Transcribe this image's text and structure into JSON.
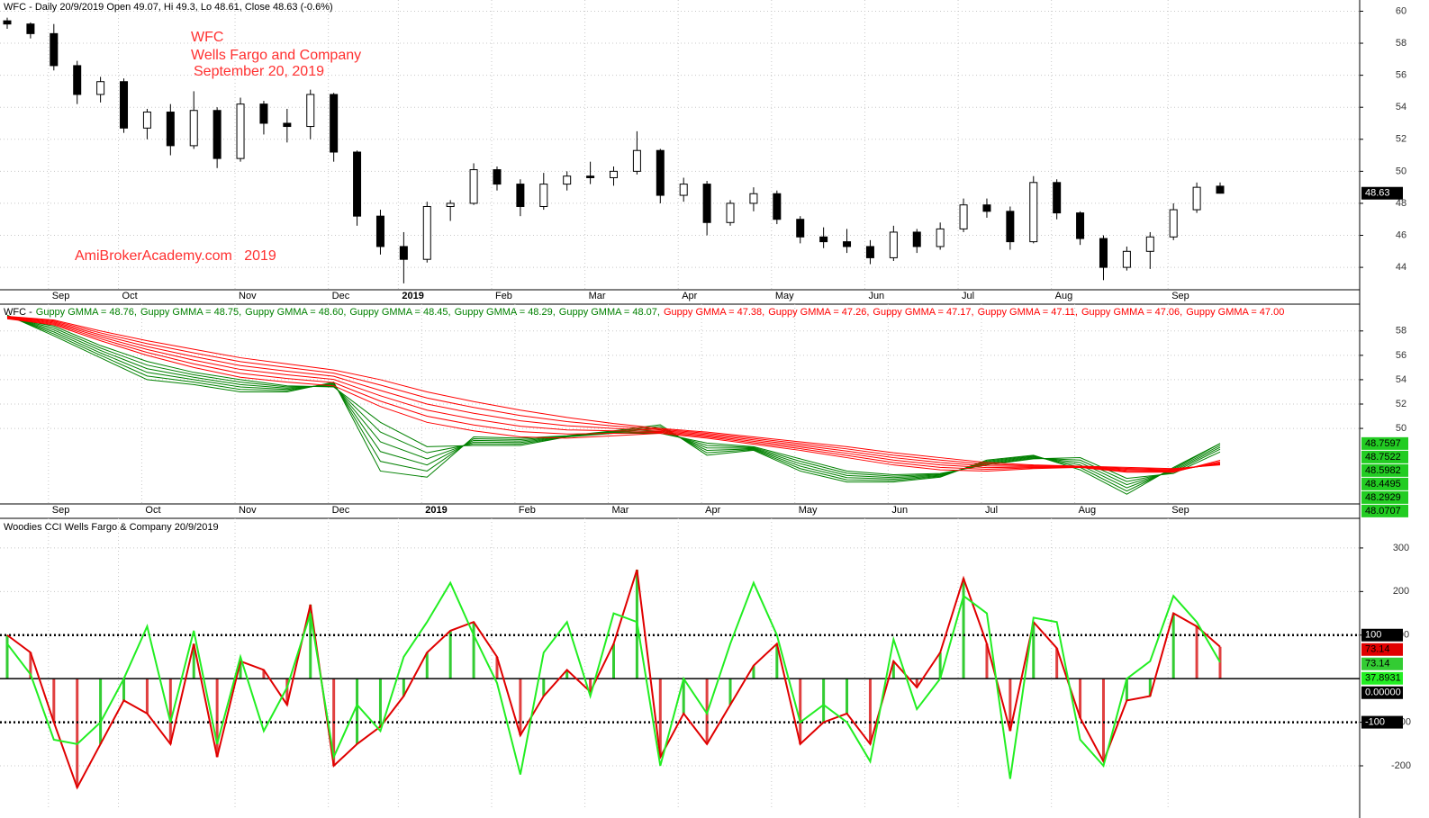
{
  "chart_data": [
    {
      "type": "candlestick",
      "title": "WFC - Daily 20/9/2019 Open 49.07, Hi 49.3, Lo 48.61, Close 48.63 (-0.6%)",
      "annotations": [
        "WFC",
        "Wells Fargo and Company",
        "September 20, 2019",
        "AmiBrokerAcademy.com   2019"
      ],
      "categories": [
        null,
        null,
        "Sep",
        null,
        null,
        "Oct",
        null,
        null,
        null,
        null,
        "Nov",
        null,
        null,
        null,
        "Dec",
        null,
        null,
        "2019",
        null,
        null,
        null,
        "Feb",
        null,
        null,
        null,
        "Mar",
        null,
        null,
        null,
        "Apr",
        null,
        null,
        null,
        "May",
        null,
        null,
        null,
        "Jun",
        null,
        null,
        null,
        "Jul",
        null,
        null,
        null,
        "Aug",
        null,
        null,
        null,
        null,
        "Sep",
        null,
        null
      ],
      "open": [
        59.4,
        59.2,
        58.6,
        56.6,
        54.8,
        55.6,
        52.7,
        53.7,
        51.6,
        53.8,
        50.8,
        54.2,
        53.0,
        52.8,
        54.8,
        51.2,
        47.2,
        45.3,
        44.5,
        47.8,
        48.0,
        50.1,
        49.2,
        47.8,
        49.2,
        49.7,
        49.6,
        50.0,
        51.3,
        48.5,
        49.2,
        46.8,
        48.0,
        48.6,
        47.0,
        45.9,
        45.6,
        45.3,
        44.6,
        46.2,
        45.3,
        46.4,
        47.9,
        47.5,
        45.6,
        49.3,
        47.4,
        45.8,
        44.0,
        45.0,
        45.9,
        47.6,
        49.07
      ],
      "high": [
        59.6,
        59.3,
        59.2,
        56.9,
        55.9,
        55.8,
        53.9,
        54.2,
        55.0,
        54.0,
        54.6,
        54.4,
        53.9,
        55.1,
        54.9,
        51.3,
        47.6,
        46.2,
        48.1,
        48.2,
        50.5,
        50.3,
        49.5,
        49.9,
        50.0,
        50.6,
        50.3,
        52.5,
        51.4,
        49.6,
        49.4,
        48.2,
        49.0,
        48.8,
        47.2,
        46.5,
        46.4,
        45.7,
        46.6,
        46.4,
        46.8,
        48.3,
        48.3,
        47.8,
        49.7,
        49.5,
        47.5,
        46.0,
        45.3,
        46.2,
        48.0,
        49.3,
        49.3
      ],
      "low": [
        58.9,
        58.3,
        56.3,
        54.2,
        54.3,
        52.4,
        52.0,
        51.0,
        51.4,
        50.2,
        50.6,
        52.3,
        51.8,
        52.0,
        50.6,
        46.6,
        44.8,
        43.0,
        44.3,
        46.9,
        47.9,
        48.8,
        47.2,
        47.6,
        48.8,
        49.2,
        49.1,
        49.8,
        48.0,
        48.1,
        46.0,
        46.6,
        47.5,
        46.7,
        45.5,
        45.2,
        44.9,
        44.2,
        44.4,
        44.9,
        45.1,
        46.2,
        47.1,
        45.1,
        45.5,
        47.0,
        45.4,
        43.2,
        43.8,
        43.9,
        45.7,
        47.4,
        48.61
      ],
      "close": [
        59.2,
        58.6,
        56.6,
        54.8,
        55.6,
        52.7,
        53.7,
        51.6,
        53.8,
        50.8,
        54.2,
        53.0,
        52.8,
        54.8,
        51.2,
        47.2,
        45.3,
        44.5,
        47.8,
        48.0,
        50.1,
        49.2,
        47.8,
        49.2,
        49.7,
        49.6,
        50.0,
        51.3,
        48.5,
        49.2,
        46.8,
        48.0,
        48.6,
        47.0,
        45.9,
        45.6,
        45.3,
        44.6,
        46.2,
        45.3,
        46.4,
        47.9,
        47.5,
        45.6,
        49.3,
        47.4,
        45.8,
        44.0,
        45.0,
        45.9,
        47.6,
        49.0,
        48.63
      ],
      "up_color": "#ffffff",
      "down_color": "#000000",
      "ylim": [
        42.6,
        60.7
      ],
      "yticks": [
        44,
        46,
        48,
        50,
        52,
        54,
        56,
        58,
        60
      ],
      "grid": true
    },
    {
      "type": "line",
      "title": "WFC -",
      "categories": [
        null,
        "Sep",
        null,
        "Oct",
        null,
        "Nov",
        null,
        "Dec",
        null,
        "2019",
        null,
        "Feb",
        null,
        "Mar",
        null,
        "Apr",
        null,
        "May",
        null,
        "Jun",
        null,
        "Jul",
        null,
        "Aug",
        null,
        "Sep",
        null
      ],
      "series": [
        {
          "name": "Guppy GMMA = 48.76,",
          "color": "#008000",
          "value_box": true,
          "values": [
            59.3,
            57.6,
            55.8,
            54.0,
            53.6,
            53.0,
            53.0,
            53.8,
            46.5,
            46.0,
            49.3,
            49.2,
            49.4,
            49.8,
            50.3,
            47.8,
            48.2,
            46.5,
            45.6,
            45.6,
            46.0,
            47.4,
            47.8,
            46.6,
            44.6,
            46.8,
            48.7597
          ]
        },
        {
          "name": "Guppy GMMA = 48.75,",
          "color": "#008000",
          "value_box": true,
          "values": [
            59.26,
            57.76,
            56.0,
            54.3,
            53.8,
            53.2,
            53.1,
            53.72,
            47.3,
            46.5,
            49.16,
            49.08,
            49.38,
            49.76,
            50.16,
            48.0,
            48.26,
            46.7,
            45.78,
            45.72,
            46.06,
            47.32,
            47.74,
            46.8,
            44.86,
            46.7,
            48.7522
          ]
        },
        {
          "name": "Guppy GMMA = 48.60,",
          "color": "#008000",
          "value_box": true,
          "values": [
            59.22,
            57.92,
            56.2,
            54.6,
            54.0,
            53.4,
            53.2,
            53.64,
            48.1,
            47.0,
            49.02,
            48.96,
            49.36,
            49.72,
            50.02,
            48.2,
            48.32,
            46.9,
            45.96,
            45.84,
            46.12,
            47.24,
            47.68,
            47.0,
            45.12,
            46.6,
            48.5982
          ]
        },
        {
          "name": "Guppy GMMA = 48.45,",
          "color": "#008000",
          "value_box": true,
          "values": [
            59.18,
            58.08,
            56.4,
            54.9,
            54.2,
            53.6,
            53.3,
            53.56,
            48.9,
            47.5,
            48.88,
            48.84,
            49.34,
            49.68,
            49.88,
            48.4,
            48.38,
            47.1,
            46.14,
            45.96,
            46.18,
            47.16,
            47.62,
            47.2,
            45.38,
            46.5,
            48.4495
          ]
        },
        {
          "name": "Guppy GMMA = 48.29,",
          "color": "#008000",
          "value_box": true,
          "values": [
            59.14,
            58.24,
            56.6,
            55.2,
            54.4,
            53.8,
            53.4,
            53.48,
            49.7,
            48.0,
            48.74,
            48.72,
            49.32,
            49.64,
            49.74,
            48.6,
            48.44,
            47.3,
            46.32,
            46.08,
            46.24,
            47.08,
            47.56,
            47.4,
            45.64,
            46.4,
            48.2929
          ]
        },
        {
          "name": "Guppy GMMA = 48.07,",
          "color": "#008000",
          "value_box": true,
          "values": [
            59.1,
            58.4,
            56.8,
            55.5,
            54.6,
            54.0,
            53.5,
            53.4,
            50.5,
            48.5,
            48.6,
            48.6,
            49.3,
            49.6,
            49.6,
            48.8,
            48.5,
            47.5,
            46.5,
            46.2,
            46.3,
            47.0,
            47.5,
            47.6,
            45.9,
            46.3,
            48.0707
          ]
        },
        {
          "name": "Guppy GMMA = 47.38,",
          "color": "#ff0000",
          "values": [
            59.0,
            58.5,
            57.2,
            56.0,
            55.0,
            54.2,
            53.8,
            53.5,
            51.8,
            50.5,
            49.8,
            49.3,
            49.2,
            49.4,
            49.6,
            49.2,
            48.7,
            48.2,
            47.6,
            47.0,
            46.6,
            46.5,
            46.7,
            46.8,
            46.4,
            46.4,
            47.38
          ]
        },
        {
          "name": "Guppy GMMA = 47.26,",
          "color": "#ff0000",
          "values": [
            59.04,
            58.58,
            57.36,
            56.24,
            55.3,
            54.52,
            54.1,
            53.76,
            52.24,
            51.0,
            50.28,
            49.74,
            49.54,
            49.6,
            49.68,
            49.3,
            48.82,
            48.34,
            47.78,
            47.2,
            46.8,
            46.64,
            46.76,
            46.82,
            46.48,
            46.46,
            47.26
          ]
        },
        {
          "name": "Guppy GMMA = 47.17,",
          "color": "#ff0000",
          "values": [
            59.08,
            58.66,
            57.52,
            56.48,
            55.6,
            54.84,
            54.4,
            54.02,
            52.68,
            51.5,
            50.76,
            50.18,
            49.88,
            49.8,
            49.76,
            49.4,
            48.94,
            48.48,
            47.96,
            47.4,
            47.0,
            46.78,
            46.82,
            46.84,
            46.56,
            46.52,
            47.17
          ]
        },
        {
          "name": "Guppy GMMA = 47.11,",
          "color": "#ff0000",
          "values": [
            59.12,
            58.74,
            57.68,
            56.72,
            55.9,
            55.16,
            54.7,
            54.28,
            53.12,
            52.0,
            51.24,
            50.62,
            50.22,
            50.0,
            49.84,
            49.5,
            49.06,
            48.62,
            48.14,
            47.6,
            47.2,
            46.92,
            46.88,
            46.86,
            46.64,
            46.58,
            47.11
          ]
        },
        {
          "name": "Guppy GMMA = 47.06,",
          "color": "#ff0000",
          "values": [
            59.16,
            58.82,
            57.84,
            56.96,
            56.2,
            55.48,
            55.0,
            54.54,
            53.56,
            52.5,
            51.72,
            51.06,
            50.56,
            50.2,
            49.92,
            49.6,
            49.18,
            48.76,
            48.32,
            47.8,
            47.4,
            47.06,
            46.94,
            46.88,
            46.72,
            46.64,
            47.06
          ]
        },
        {
          "name": "Guppy GMMA = 47.00",
          "color": "#ff0000",
          "values": [
            59.2,
            58.9,
            58.0,
            57.2,
            56.5,
            55.8,
            55.3,
            54.8,
            54.0,
            53.0,
            52.2,
            51.5,
            50.9,
            50.4,
            50.0,
            49.7,
            49.3,
            48.9,
            48.5,
            48.0,
            47.6,
            47.2,
            47.0,
            46.9,
            46.8,
            46.7,
            47.0
          ]
        }
      ],
      "ylim": [
        43.8,
        60.2
      ],
      "yticks": [
        50,
        52,
        54,
        56,
        58
      ],
      "grid": true
    },
    {
      "type": "cci",
      "title": "Woodies CCI  Wells Fargo & Company 20/9/2019",
      "series": [
        {
          "color": "#e00000",
          "histogram": true,
          "values": [
            100,
            60,
            -100,
            -250,
            -150,
            -50,
            -80,
            -150,
            80,
            -180,
            40,
            20,
            -60,
            170,
            -200,
            -150,
            -110,
            -40,
            60,
            110,
            130,
            50,
            -130,
            -40,
            20,
            -30,
            80,
            250,
            -180,
            -80,
            -150,
            -60,
            30,
            80,
            -150,
            -100,
            -80,
            -150,
            40,
            -20,
            60,
            230,
            80,
            -120,
            130,
            70,
            -90,
            -190,
            -50,
            -40,
            150,
            120,
            73.14
          ]
        },
        {
          "color": "#22ee22",
          "values": [
            80,
            10,
            -140,
            -150,
            -100,
            0,
            120,
            -100,
            110,
            -150,
            50,
            -120,
            -20,
            150,
            -180,
            -60,
            -120,
            50,
            130,
            220,
            100,
            -10,
            -220,
            60,
            130,
            -40,
            150,
            130,
            -200,
            0,
            -80,
            80,
            220,
            100,
            -100,
            -60,
            -100,
            -190,
            90,
            -70,
            0,
            190,
            150,
            -230,
            140,
            130,
            -140,
            -200,
            0,
            40,
            190,
            130,
            37.8931
          ]
        }
      ],
      "histogram_colors": [
        "#33cc33",
        "#e04040"
      ],
      "levels": [
        100,
        {
          "value": 0,
          "label": "0.00000"
        },
        -100
      ],
      "ylim": [
        -295,
        368
      ],
      "yticks": [
        -200,
        -100,
        100,
        200,
        300
      ],
      "grid": true
    }
  ]
}
